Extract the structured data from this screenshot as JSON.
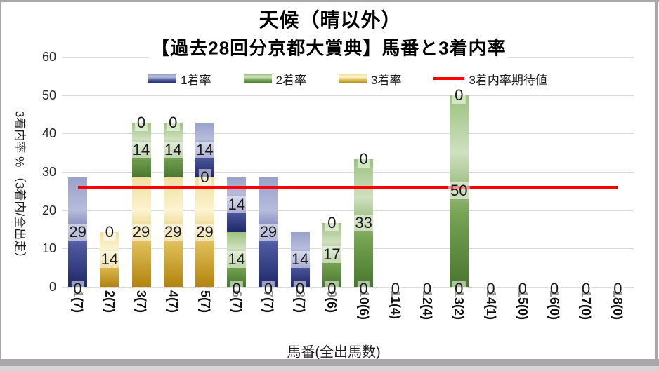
{
  "chart_title_line1": "天候（晴以外）",
  "chart_title_line2": "【過去28回分京都大賞典】馬番と3着内率",
  "legend": {
    "items": [
      {
        "label": "1着率",
        "swatch": "bar",
        "series_key": "blue"
      },
      {
        "label": "2着率",
        "swatch": "bar",
        "series_key": "green"
      },
      {
        "label": "3着率",
        "swatch": "bar",
        "series_key": "yellow"
      },
      {
        "label": "3着内率期待値",
        "swatch": "line",
        "series_key": "red"
      }
    ]
  },
  "y_axis": {
    "title": "3着内率 % （3着内/全出走）",
    "ticks": [
      0,
      10,
      20,
      30,
      40,
      50,
      60
    ]
  },
  "x_axis": {
    "title": "馬番(全出馬数)"
  },
  "chart_data": {
    "type": "bar",
    "stacked": true,
    "title": "天候（晴以外） 【過去28回分京都大賞典】馬番と3着内率",
    "categories": [
      "1(7)",
      "2(7)",
      "3(7)",
      "4(7)",
      "5(7)",
      "6(7)",
      "7(7)",
      "8(7)",
      "9(6)",
      "10(6)",
      "11(4)",
      "12(4)",
      "13(2)",
      "14(1)",
      "15(0)",
      "16(0)",
      "17(0)",
      "18(0)"
    ],
    "series": [
      {
        "name": "3着率",
        "color_key": "yellow",
        "values": [
          0,
          14.29,
          28.57,
          28.57,
          28.57,
          0,
          0,
          0,
          0,
          0,
          0,
          0,
          0,
          0,
          0,
          0,
          0,
          0
        ]
      },
      {
        "name": "2着率",
        "color_key": "green",
        "values": [
          0,
          0,
          14.29,
          14.29,
          0,
          14.29,
          0,
          0,
          16.67,
          33.33,
          0,
          0,
          50,
          0,
          0,
          0,
          0,
          0
        ]
      },
      {
        "name": "1着率",
        "color_key": "blue",
        "values": [
          28.57,
          0,
          0,
          0,
          14.29,
          14.29,
          28.57,
          14.29,
          0,
          0,
          0,
          0,
          0,
          0,
          0,
          0,
          0,
          0
        ]
      }
    ],
    "expected_line": {
      "name": "3着内率期待値",
      "value": 26,
      "color": "#FF0000"
    },
    "ylim": [
      0,
      60
    ],
    "ylabel": "3着内率 % （3着内/全出走）",
    "xlabel": "馬番(全出馬数)",
    "grid": true,
    "legend_position": "top",
    "colors": {
      "blue": {
        "stops": [
          "#99a1ca",
          "#b7bcdb",
          "#4e58a0",
          "#1e2866"
        ]
      },
      "green": {
        "stops": [
          "#9cc27e",
          "#cfe0c0",
          "#76a452",
          "#49762f"
        ]
      },
      "yellow": {
        "stops": [
          "#f0dfa2",
          "#fcf4d0",
          "#ddbc55",
          "#b2830d"
        ]
      },
      "red": "#FF0000",
      "gridline": "#d9d9d9",
      "label_bg": "rgba(255,255,255,0.55)"
    }
  }
}
